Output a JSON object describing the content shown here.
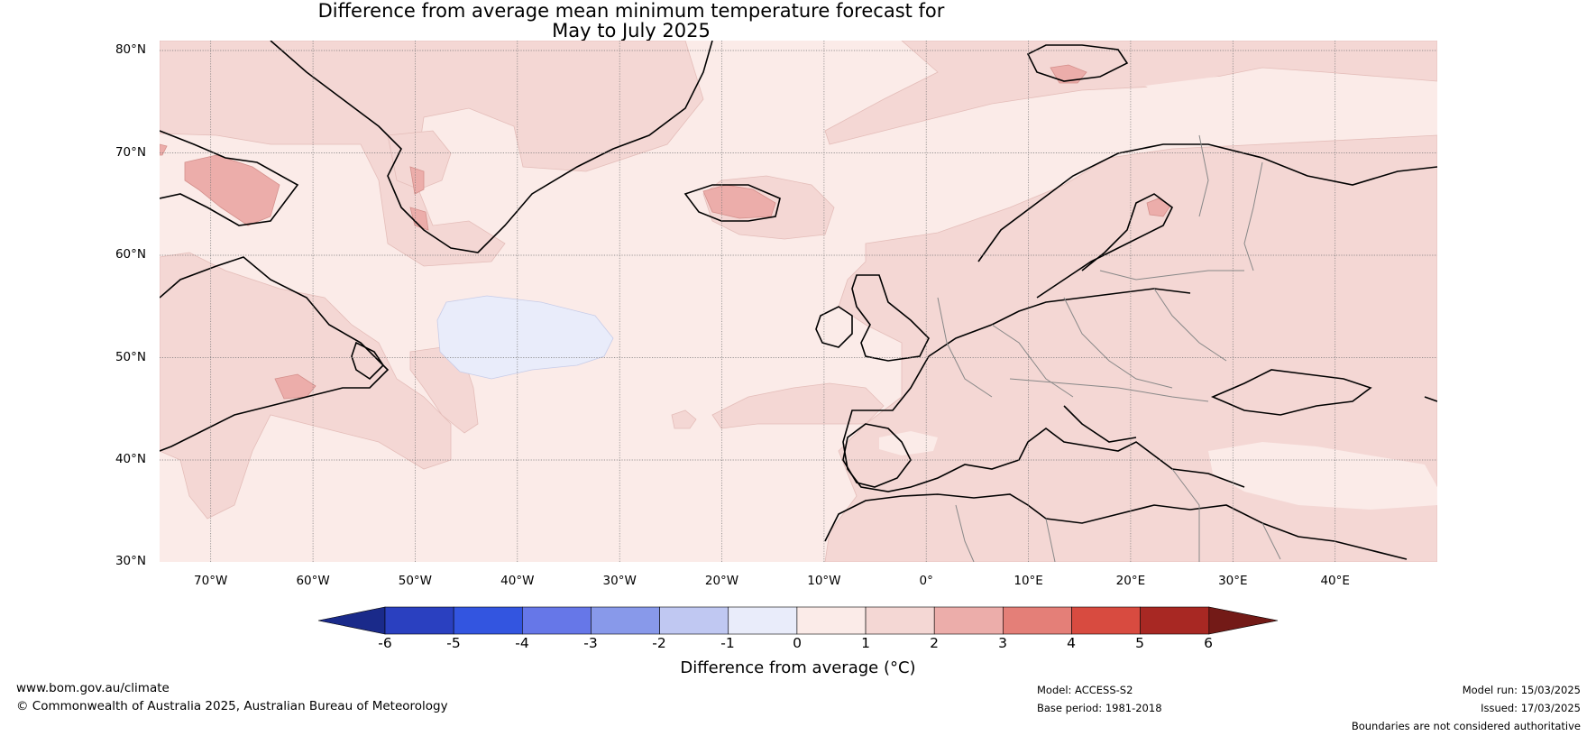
{
  "title": {
    "line1": "Difference from average mean minimum temperature forecast for",
    "line2": "May to July 2025"
  },
  "map": {
    "extent_lon": [
      -75,
      50
    ],
    "extent_lat": [
      30,
      81
    ],
    "lat_labels": [
      "80°N",
      "70°N",
      "60°N",
      "50°N",
      "40°N",
      "30°N"
    ],
    "lon_labels": [
      "70°W",
      "60°W",
      "50°W",
      "40°W",
      "30°W",
      "20°W",
      "10°W",
      "0°",
      "10°E",
      "20°E",
      "30°E",
      "40°E"
    ],
    "grid": "dotted",
    "fill_colors": {
      "below_-1_-0": "#e9ecfa",
      "0_1": "#fbebe8",
      "1_2": "#f4d7d4",
      "2_3": "#ecadaa"
    }
  },
  "colorbar": {
    "ticks": [
      "-6",
      "-5",
      "-4",
      "-3",
      "-2",
      "-1",
      "0",
      "1",
      "2",
      "3",
      "4",
      "5",
      "6"
    ],
    "colors": [
      "#1a2a8a",
      "#2a40c0",
      "#3355e0",
      "#6677e8",
      "#8899ea",
      "#c0c8f2",
      "#e9ecfa",
      "#fbebe8",
      "#f4d7d4",
      "#ecadaa",
      "#e47f78",
      "#d84b40",
      "#a82823",
      "#731a17"
    ],
    "label": "Difference from average (°C)"
  },
  "footer": {
    "website": "www.bom.gov.au/climate",
    "copyright": "© Commonwealth of Australia 2025, Australian Bureau of Meteorology",
    "model": "Model: ACCESS-S2",
    "base_period": "Base period: 1981-2018",
    "model_run": "Model run: 15/03/2025",
    "issued": "Issued: 17/03/2025",
    "disclaimer": "Boundaries are not considered authoritative"
  }
}
